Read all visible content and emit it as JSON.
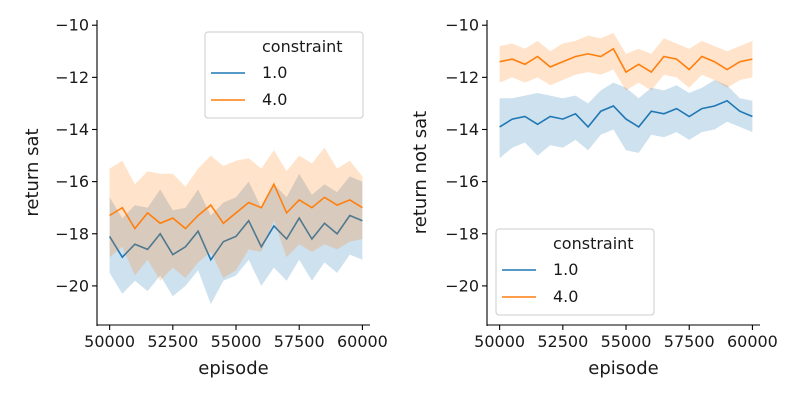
{
  "chart_data": [
    {
      "type": "line",
      "title": "",
      "xlabel": "episode",
      "ylabel": "return sat",
      "xlim": [
        49500,
        60300
      ],
      "ylim": [
        -21.5,
        -9.8
      ],
      "xticks": [
        50000,
        52500,
        55000,
        57500,
        60000
      ],
      "xtick_labels": [
        "50000",
        "52500",
        "55000",
        "57500",
        "60000"
      ],
      "yticks": [
        -20,
        -18,
        -16,
        -14,
        -12,
        -10
      ],
      "ytick_labels": [
        "−20",
        "−18",
        "−16",
        "−14",
        "−12",
        "−10"
      ],
      "legend": {
        "title": "constraint",
        "position": "upper-right"
      },
      "series": [
        {
          "name": "1.0",
          "color": "#1f77b4",
          "x": [
            50000,
            50500,
            51000,
            51500,
            52000,
            52500,
            53000,
            53500,
            54000,
            54500,
            55000,
            55500,
            56000,
            56500,
            57000,
            57500,
            58000,
            58500,
            59000,
            59500,
            60000
          ],
          "values": [
            -18.1,
            -18.9,
            -18.4,
            -18.6,
            -18.0,
            -18.8,
            -18.5,
            -17.9,
            -19.0,
            -18.3,
            -18.1,
            -17.5,
            -18.5,
            -17.7,
            -18.2,
            -17.4,
            -18.2,
            -17.6,
            -18.0,
            -17.3,
            -17.5
          ],
          "upper": [
            -16.6,
            -17.4,
            -16.9,
            -17.0,
            -16.3,
            -17.1,
            -17.0,
            -16.3,
            -17.3,
            -16.8,
            -16.6,
            -16.0,
            -17.0,
            -16.1,
            -16.6,
            -15.7,
            -16.5,
            -16.1,
            -16.4,
            -15.8,
            -16.0
          ],
          "lower": [
            -19.5,
            -20.3,
            -19.8,
            -20.2,
            -19.6,
            -20.4,
            -20.0,
            -19.4,
            -20.7,
            -19.8,
            -19.6,
            -19.0,
            -20.0,
            -19.3,
            -19.8,
            -19.0,
            -19.8,
            -19.1,
            -19.5,
            -18.8,
            -19.0
          ]
        },
        {
          "name": "4.0",
          "color": "#ff7f0e",
          "x": [
            50000,
            50500,
            51000,
            51500,
            52000,
            52500,
            53000,
            53500,
            54000,
            54500,
            55000,
            55500,
            56000,
            56500,
            57000,
            57500,
            58000,
            58500,
            59000,
            59500,
            60000
          ],
          "values": [
            -17.3,
            -17.0,
            -17.8,
            -17.2,
            -17.6,
            -17.4,
            -17.8,
            -17.3,
            -16.9,
            -17.6,
            -17.2,
            -16.8,
            -17.0,
            -16.1,
            -17.2,
            -16.7,
            -17.0,
            -16.6,
            -16.9,
            -16.7,
            -17.0
          ],
          "upper": [
            -15.5,
            -15.2,
            -16.1,
            -15.6,
            -15.7,
            -15.7,
            -16.2,
            -15.5,
            -15.0,
            -15.4,
            -15.2,
            -15.1,
            -15.5,
            -14.8,
            -15.6,
            -15.0,
            -15.3,
            -14.7,
            -15.5,
            -15.2,
            -15.8
          ],
          "lower": [
            -18.9,
            -18.5,
            -19.6,
            -19.0,
            -19.8,
            -19.3,
            -19.7,
            -19.1,
            -18.7,
            -19.7,
            -19.4,
            -18.6,
            -18.7,
            -17.5,
            -18.9,
            -18.4,
            -18.7,
            -18.4,
            -18.6,
            -18.3,
            -18.2
          ]
        }
      ]
    },
    {
      "type": "line",
      "title": "",
      "xlabel": "episode",
      "ylabel": "return not sat",
      "xlim": [
        49500,
        60300
      ],
      "ylim": [
        -21.5,
        -9.8
      ],
      "xticks": [
        50000,
        52500,
        55000,
        57500,
        60000
      ],
      "xtick_labels": [
        "50000",
        "52500",
        "55000",
        "57500",
        "60000"
      ],
      "yticks": [
        -20,
        -18,
        -16,
        -14,
        -12,
        -10
      ],
      "ytick_labels": [
        "−20",
        "−18",
        "−16",
        "−14",
        "−12",
        "−10"
      ],
      "legend": {
        "title": "constraint",
        "position": "lower-left"
      },
      "series": [
        {
          "name": "1.0",
          "color": "#1f77b4",
          "x": [
            50000,
            50500,
            51000,
            51500,
            52000,
            52500,
            53000,
            53500,
            54000,
            54500,
            55000,
            55500,
            56000,
            56500,
            57000,
            57500,
            58000,
            58500,
            59000,
            59500,
            60000
          ],
          "values": [
            -13.9,
            -13.6,
            -13.5,
            -13.8,
            -13.5,
            -13.6,
            -13.4,
            -13.9,
            -13.3,
            -13.1,
            -13.6,
            -13.9,
            -13.3,
            -13.4,
            -13.2,
            -13.5,
            -13.2,
            -13.1,
            -12.9,
            -13.3,
            -13.5
          ],
          "upper": [
            -12.8,
            -12.8,
            -12.7,
            -12.6,
            -12.7,
            -12.8,
            -12.7,
            -13.0,
            -12.5,
            -12.2,
            -12.4,
            -12.8,
            -12.4,
            -12.5,
            -12.3,
            -12.6,
            -12.4,
            -12.1,
            -12.3,
            -12.8,
            -12.9
          ],
          "lower": [
            -15.1,
            -14.7,
            -14.5,
            -15.0,
            -14.6,
            -14.7,
            -14.4,
            -14.8,
            -14.2,
            -14.0,
            -14.8,
            -14.9,
            -14.2,
            -14.3,
            -14.1,
            -14.4,
            -14.1,
            -14.0,
            -13.7,
            -13.9,
            -14.1
          ]
        },
        {
          "name": "4.0",
          "color": "#ff7f0e",
          "x": [
            50000,
            50500,
            51000,
            51500,
            52000,
            52500,
            53000,
            53500,
            54000,
            54500,
            55000,
            55500,
            56000,
            56500,
            57000,
            57500,
            58000,
            58500,
            59000,
            59500,
            60000
          ],
          "values": [
            -11.4,
            -11.3,
            -11.5,
            -11.2,
            -11.6,
            -11.4,
            -11.2,
            -11.1,
            -11.2,
            -10.9,
            -11.8,
            -11.5,
            -11.8,
            -11.2,
            -11.3,
            -11.7,
            -11.2,
            -11.4,
            -11.7,
            -11.4,
            -11.3
          ],
          "upper": [
            -10.8,
            -10.7,
            -10.9,
            -10.6,
            -11.0,
            -10.7,
            -10.6,
            -10.4,
            -10.5,
            -10.3,
            -11.1,
            -10.9,
            -11.1,
            -10.5,
            -10.7,
            -10.9,
            -10.6,
            -10.8,
            -11.0,
            -10.8,
            -10.6
          ],
          "lower": [
            -12.2,
            -12.0,
            -12.2,
            -12.0,
            -12.3,
            -12.1,
            -11.9,
            -11.8,
            -11.9,
            -11.7,
            -12.5,
            -12.2,
            -12.5,
            -11.9,
            -12.0,
            -12.4,
            -11.9,
            -12.1,
            -12.4,
            -12.1,
            -12.0
          ]
        }
      ]
    }
  ]
}
